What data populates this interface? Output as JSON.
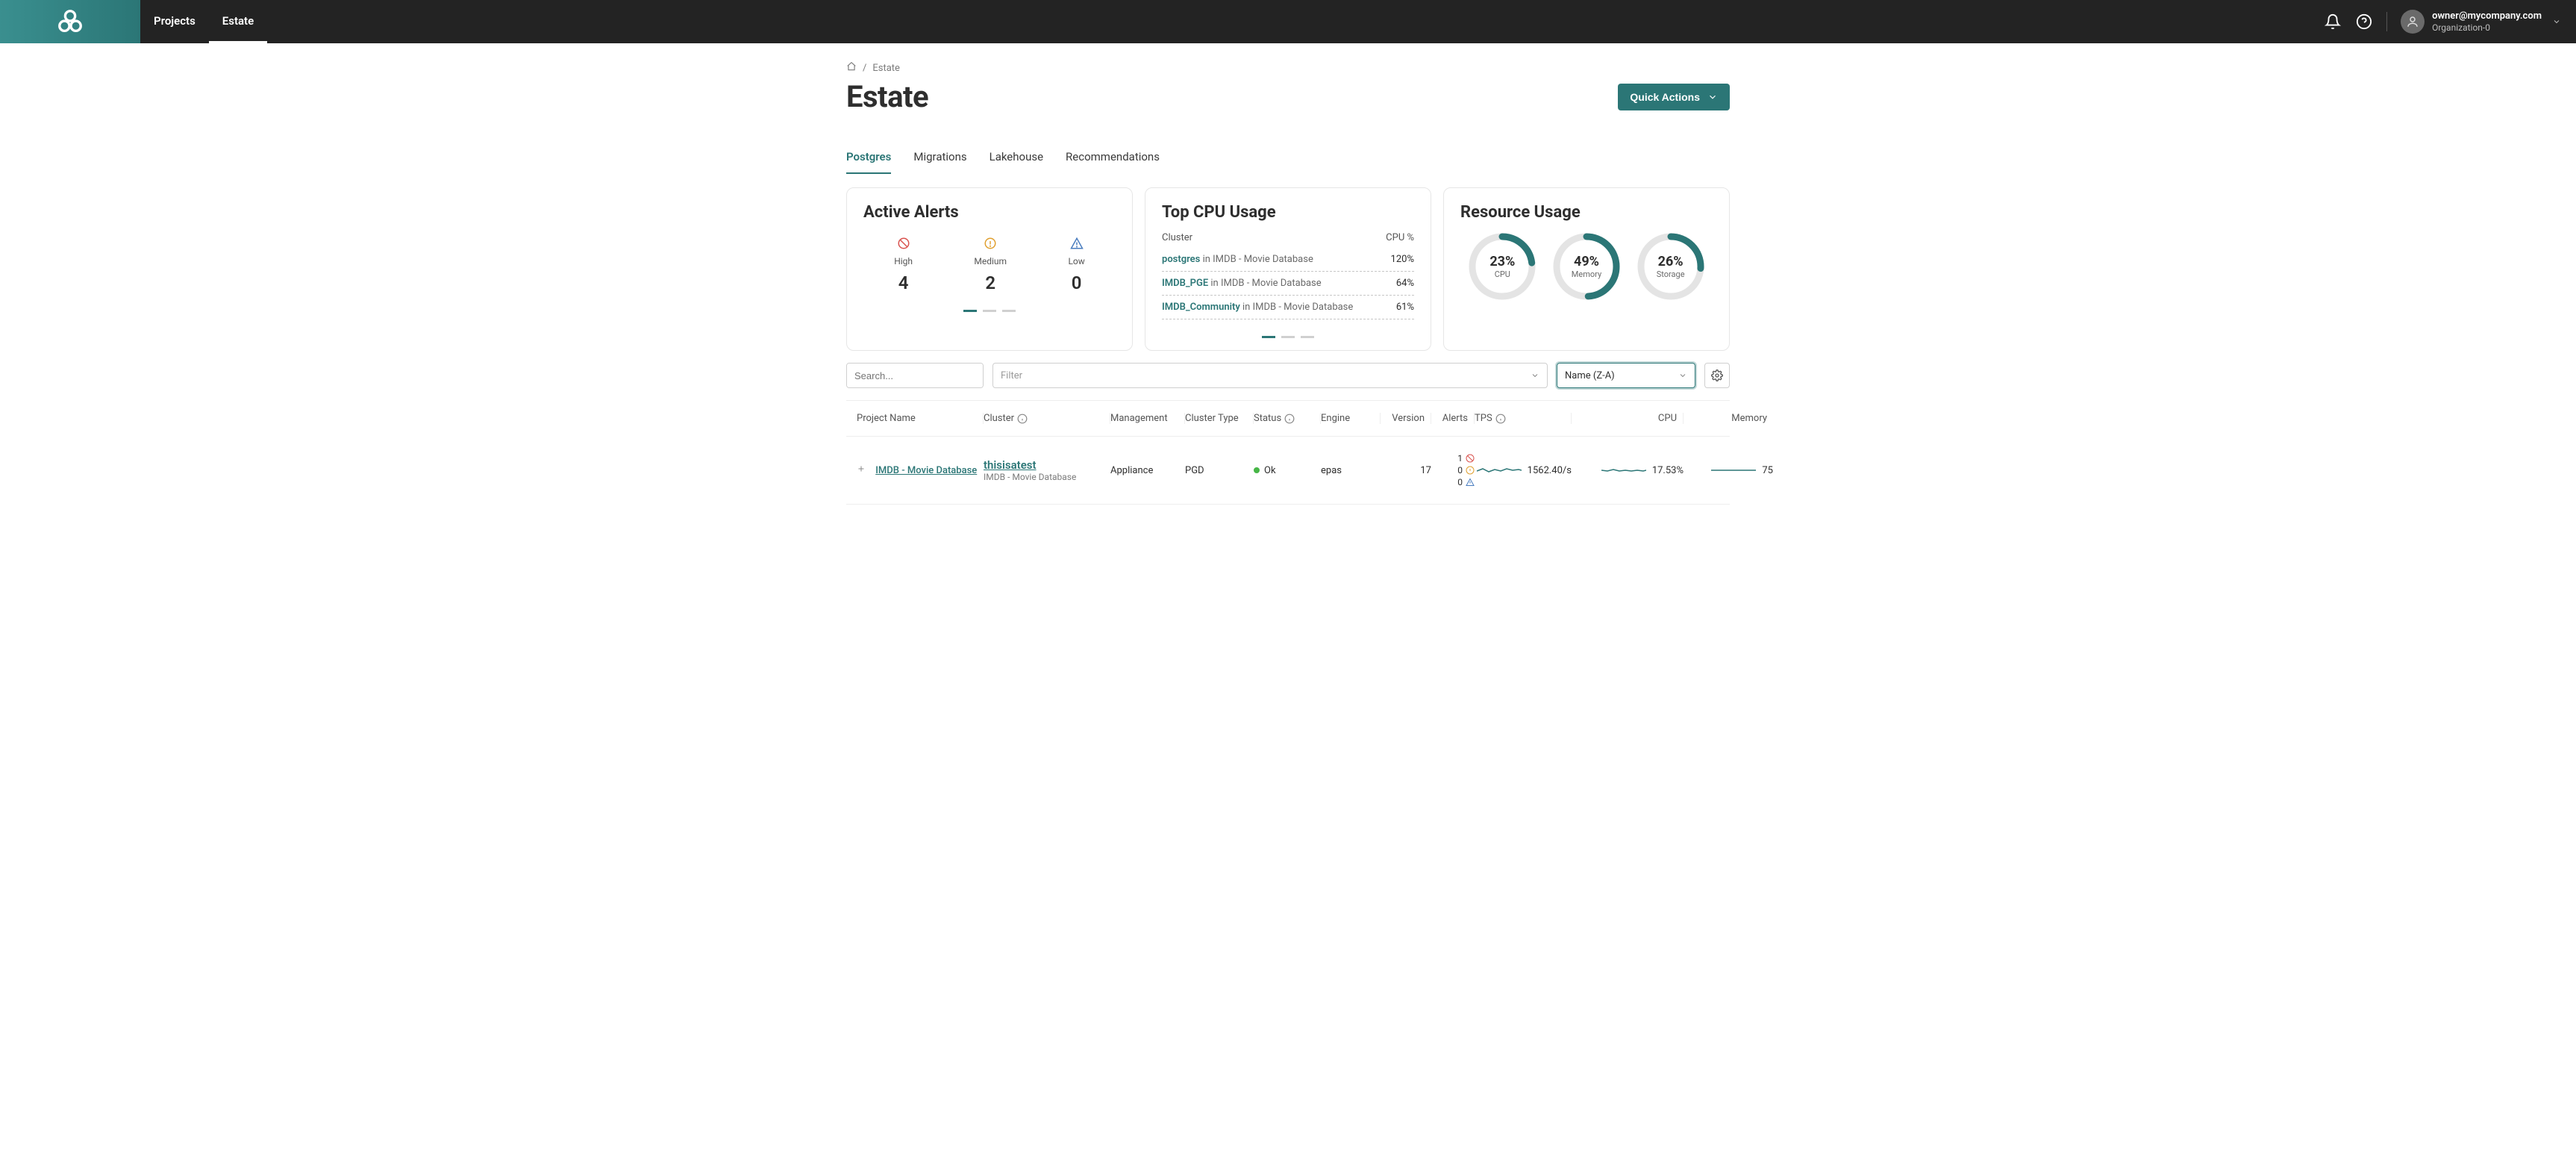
{
  "nav": {
    "tabs": [
      "Projects",
      "Estate"
    ],
    "active_tab": 1,
    "user": {
      "email": "owner@mycompany.com",
      "org": "Organization-0"
    }
  },
  "breadcrumb": {
    "current": "Estate"
  },
  "page_title": "Estate",
  "quick_actions_label": "Quick Actions",
  "sub_tabs": [
    "Postgres",
    "Migrations",
    "Lakehouse",
    "Recommendations"
  ],
  "sub_tab_active": 0,
  "alerts_card": {
    "title": "Active Alerts",
    "items": [
      {
        "label": "High",
        "count": 4,
        "color": "#d9534f",
        "icon": "ban"
      },
      {
        "label": "Medium",
        "count": 2,
        "color": "#e0a030",
        "icon": "info"
      },
      {
        "label": "Low",
        "count": 0,
        "color": "#4a7dbf",
        "icon": "warn"
      }
    ]
  },
  "cpu_card": {
    "title": "Top CPU Usage",
    "heading_left": "Cluster",
    "heading_right": "CPU %",
    "rows": [
      {
        "name": "postgres",
        "project": " in IMDB - Movie Database",
        "value": "120%"
      },
      {
        "name": "IMDB_PGE",
        "project": " in IMDB - Movie Database",
        "value": "64%"
      },
      {
        "name": "IMDB_Community",
        "project": " in IMDB - Movie Database",
        "value": "61%"
      }
    ]
  },
  "resource_card": {
    "title": "Resource Usage",
    "donuts": [
      {
        "label": "CPU",
        "pct": 23,
        "display": "23%",
        "color": "#2b7676",
        "track": "#e4e4e4"
      },
      {
        "label": "Memory",
        "pct": 49,
        "display": "49%",
        "color": "#2b7676",
        "track": "#e4e4e4"
      },
      {
        "label": "Storage",
        "pct": 26,
        "display": "26%",
        "color": "#2b7676",
        "track": "#e4e4e4"
      }
    ]
  },
  "filters": {
    "search_placeholder": "Search...",
    "filter_placeholder": "Filter",
    "sort_value": "Name (Z-A)"
  },
  "table": {
    "columns": [
      "Project Name",
      "Cluster",
      "Management",
      "Cluster Type",
      "Status",
      "Engine",
      "Version",
      "Alerts",
      "TPS",
      "CPU",
      "Memory"
    ],
    "row": {
      "project": "IMDB - Movie Database",
      "cluster_name": "thisisatest",
      "cluster_sub": "IMDB - Movie Database",
      "management": "Appliance",
      "cluster_type": "PGD",
      "status": "Ok",
      "engine": "epas",
      "version": "17",
      "alerts": {
        "high": 1,
        "medium": 0,
        "low": 0
      },
      "tps": "1562.40/s",
      "cpu": "17.53%",
      "memory": "75",
      "spark_color": "#2b7676"
    }
  },
  "colors": {
    "teal": "#2b7676",
    "nav_bg": "#232323",
    "border": "#e6e6e6"
  }
}
